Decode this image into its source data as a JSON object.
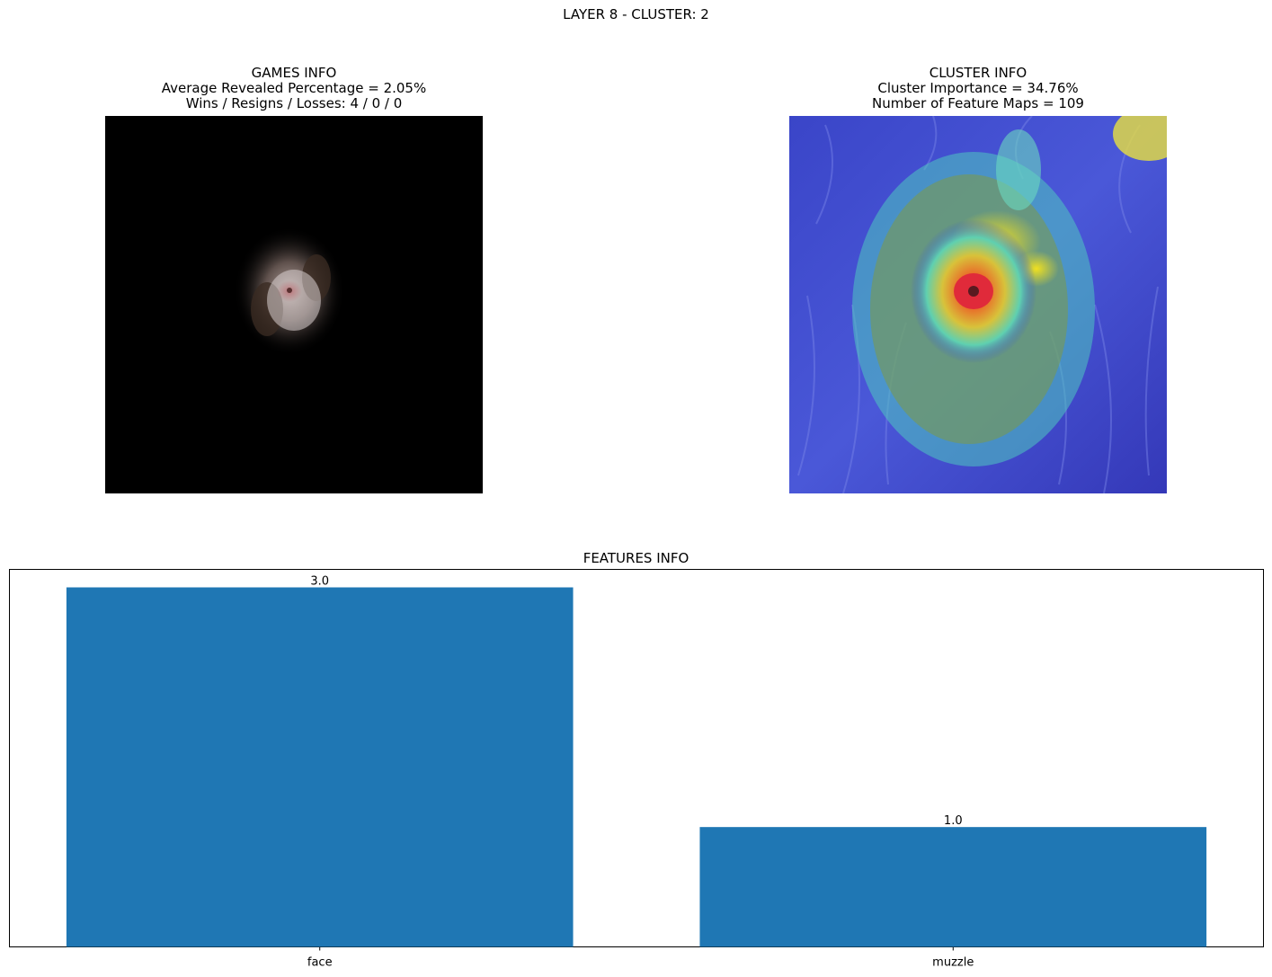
{
  "suptitle": "LAYER 8 - CLUSTER: 2",
  "games_info": {
    "title": "GAMES INFO",
    "line1": "Average Revealed Percentage = 2.05%",
    "line2": "Wins / Resigns / Losses: 4 / 0 / 0"
  },
  "cluster_info": {
    "title": "CLUSTER INFO",
    "line1": "Cluster Importance = 34.76%",
    "line2": "Number of Feature Maps = 109"
  },
  "colors": {
    "bar": "#1f77b4",
    "masked_background": "#000000"
  },
  "chart_data": {
    "type": "bar",
    "title": "FEATURES INFO",
    "categories": [
      "face",
      "muzzle"
    ],
    "values": [
      3.0,
      1.0
    ],
    "value_labels": [
      "3.0",
      "1.0"
    ],
    "xlabel": "",
    "ylabel": "",
    "ylim": [
      0,
      3.15
    ],
    "grid": false,
    "yticks_visible": false
  }
}
